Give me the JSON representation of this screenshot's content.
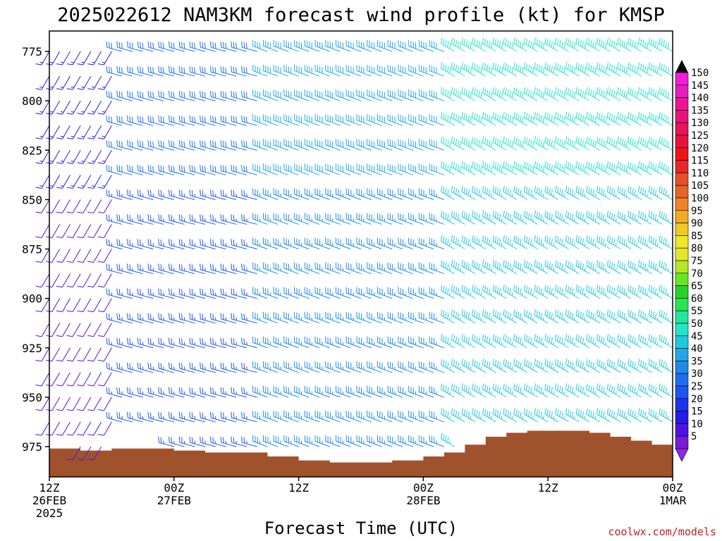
{
  "chart_data": {
    "type": "wind-barb-profile",
    "title": "2025022612 NAM3KM forecast wind profile (kt) for KMSP",
    "xlabel": "Forecast Time (UTC)",
    "ylabel": "",
    "y_axis": {
      "ticks": [
        775,
        800,
        825,
        850,
        875,
        900,
        925,
        950,
        975
      ],
      "range": [
        787,
        981
      ],
      "inverted": true
    },
    "x_axis": {
      "ticks": [
        {
          "hour": 0,
          "line1": "12Z",
          "line2": "26FEB",
          "line3": "2025"
        },
        {
          "hour": 12,
          "line1": "00Z",
          "line2": "27FEB",
          "line3": ""
        },
        {
          "hour": 24,
          "line1": "12Z",
          "line2": "",
          "line3": ""
        },
        {
          "hour": 36,
          "line1": "00Z",
          "line2": "28FEB",
          "line3": ""
        },
        {
          "hour": 48,
          "line1": "12Z",
          "line2": "",
          "line3": ""
        },
        {
          "hour": 60,
          "line1": "00Z",
          "line2": "1MAR",
          "line3": ""
        }
      ],
      "range": [
        0,
        60
      ]
    },
    "colorbar": {
      "values": [
        5,
        10,
        15,
        20,
        25,
        30,
        35,
        40,
        45,
        50,
        55,
        60,
        65,
        70,
        75,
        80,
        85,
        90,
        95,
        100,
        105,
        110,
        115,
        120,
        125,
        130,
        135,
        140,
        145,
        150
      ],
      "colors": [
        "#7a1bd6",
        "#4f13e6",
        "#2a1ae8",
        "#1e32ee",
        "#1f55f0",
        "#1e6ff0",
        "#1f8ae8",
        "#22a8e6",
        "#22c8dc",
        "#22e6c8",
        "#22e69a",
        "#28e650",
        "#28d228",
        "#66e628",
        "#b4e628",
        "#e6e628",
        "#f0e628",
        "#f0c828",
        "#f0aa28",
        "#f08228",
        "#e66428",
        "#e65028",
        "#e62828",
        "#f01414",
        "#e6143c",
        "#e6145a",
        "#e61478",
        "#f01496",
        "#e61ebe",
        "#f01edc"
      ],
      "over_color": "#000000",
      "under_color": "#8c28e6"
    },
    "hours_plotted": [
      0,
      60
    ],
    "times_per_hour": 1,
    "levels_plotted_mb": [
      775,
      800,
      825,
      850,
      875,
      900,
      925,
      950,
      975
    ],
    "wind_regimes": [
      {
        "hours": [
          0,
          6
        ],
        "direction_deg": 210,
        "speed_kt": 10
      },
      {
        "hours": [
          6,
          20
        ],
        "direction_deg": 285,
        "speed_kt": 25
      },
      {
        "hours": [
          20,
          38
        ],
        "direction_deg": 290,
        "speed_kt": 35
      },
      {
        "hours": [
          38,
          60
        ],
        "direction_deg": 300,
        "speed_kt": 45
      }
    ],
    "terrain": {
      "color": "#a0522d",
      "hours": [
        0,
        3,
        6,
        9,
        12,
        15,
        18,
        21,
        24,
        27,
        30,
        33,
        36,
        38,
        40,
        42,
        44,
        46,
        48,
        50,
        52,
        54,
        56,
        58,
        60
      ],
      "pressure_mb": [
        976,
        977,
        976,
        976,
        977,
        978,
        978,
        980,
        982,
        983,
        983,
        982,
        980,
        978,
        974,
        970,
        968,
        967,
        967,
        967,
        968,
        970,
        972,
        974,
        976
      ]
    }
  },
  "credit": "coolwx.com/models"
}
